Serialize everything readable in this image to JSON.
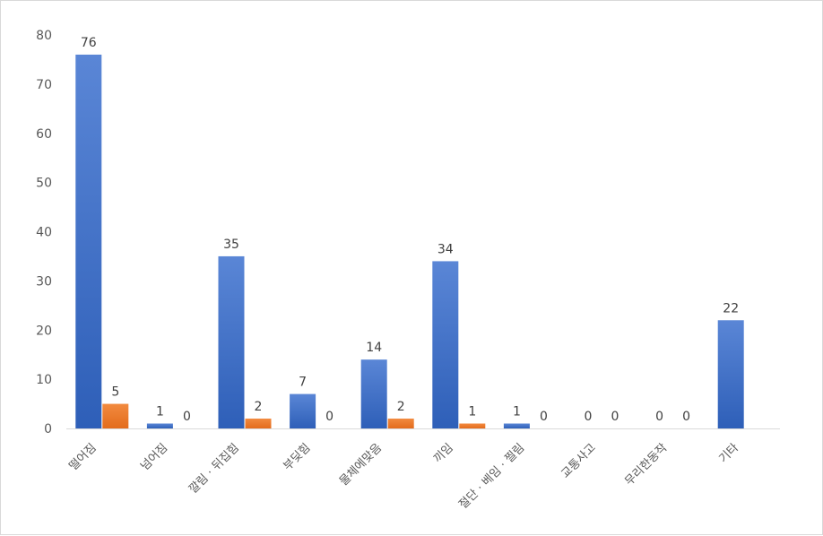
{
  "chart_data": {
    "type": "bar",
    "categories": [
      "떨어짐",
      "넘어짐",
      "깔림 · 뒤집힘",
      "부딪힘",
      "물체에맞음",
      "끼임",
      "절단 · 베임 · 찔림",
      "교통사고",
      "무리한동작",
      "기타"
    ],
    "series": [
      {
        "values": [
          76,
          1,
          35,
          7,
          14,
          34,
          1,
          0,
          0,
          22
        ],
        "color": "#4472c4"
      },
      {
        "values": [
          5,
          0,
          2,
          0,
          2,
          1,
          0,
          0,
          0,
          null
        ],
        "color": "#ed7d31"
      }
    ],
    "ylim": [
      0,
      80
    ],
    "yticks": [
      0,
      10,
      20,
      30,
      40,
      50,
      60,
      70,
      80
    ],
    "grid": false,
    "legend": "none",
    "data_labels": true
  }
}
